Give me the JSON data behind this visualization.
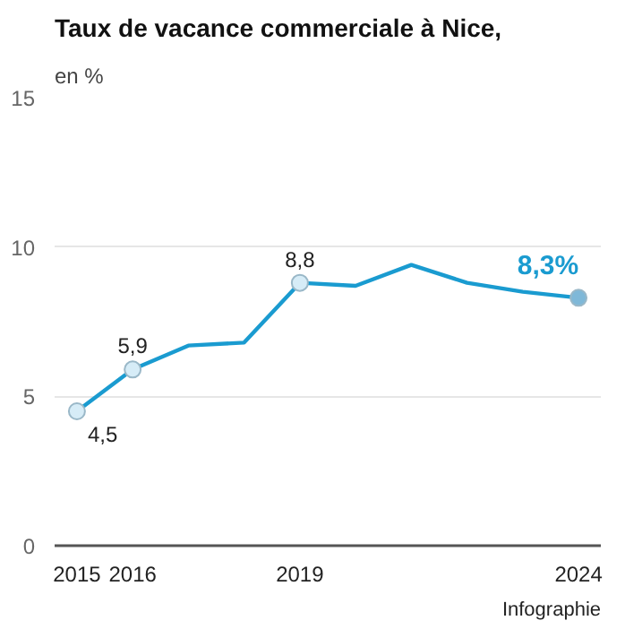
{
  "chart_data": {
    "type": "line",
    "title": "Taux de vacance commerciale à Nice,",
    "subtitle": "en %",
    "x": [
      2015,
      2016,
      2017,
      2018,
      2019,
      2020,
      2021,
      2022,
      2023,
      2024
    ],
    "series": [
      {
        "color": "#1a9bd0",
        "values": [
          4.5,
          5.9,
          6.7,
          6.8,
          8.8,
          8.7,
          9.4,
          8.8,
          8.5,
          8.3
        ]
      },
      {
        "type": "scatter",
        "color": "#1a9bd0",
        "colors": [
          "#d6ecf7",
          "#d6ecf7",
          "#d6ecf7",
          "#7fb8d8"
        ],
        "marker": "circle",
        "x": [
          2015,
          2016,
          2019,
          2024
        ],
        "values": [
          4.5,
          5.9,
          8.8,
          8.3
        ],
        "value_labels": [
          "4,5",
          "5,9",
          "8,8",
          "8,3%"
        ]
      }
    ],
    "xlim": [
      2014.6,
      2024.4
    ],
    "xticks": [
      2015,
      2016,
      2019,
      2024
    ],
    "ylim": [
      0,
      15
    ],
    "yticks": [
      0,
      5,
      10,
      15
    ],
    "grid": "y",
    "annotations": [
      "Infographie"
    ]
  }
}
